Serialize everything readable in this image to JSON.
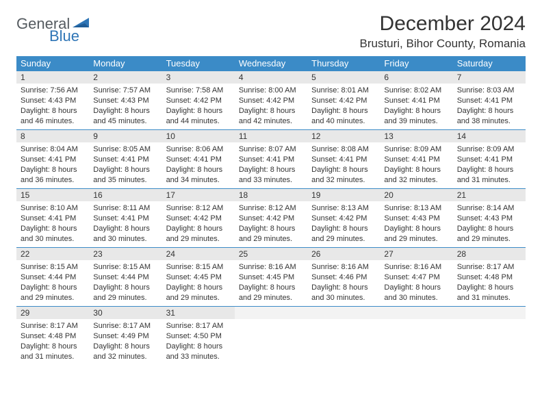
{
  "logo": {
    "text1": "General",
    "text2": "Blue",
    "color1": "#555b60",
    "color2": "#2e75b6"
  },
  "title": "December 2024",
  "location": "Brusturi, Bihor County, Romania",
  "header_bg": "#3b8bc7",
  "daynum_bg": "#e8e8e8",
  "border_color": "#3b8bc7",
  "weekdays": [
    "Sunday",
    "Monday",
    "Tuesday",
    "Wednesday",
    "Thursday",
    "Friday",
    "Saturday"
  ],
  "start_offset": 0,
  "days": [
    {
      "n": 1,
      "sr": "7:56 AM",
      "ss": "4:43 PM",
      "dl": "8 hours and 46 minutes."
    },
    {
      "n": 2,
      "sr": "7:57 AM",
      "ss": "4:43 PM",
      "dl": "8 hours and 45 minutes."
    },
    {
      "n": 3,
      "sr": "7:58 AM",
      "ss": "4:42 PM",
      "dl": "8 hours and 44 minutes."
    },
    {
      "n": 4,
      "sr": "8:00 AM",
      "ss": "4:42 PM",
      "dl": "8 hours and 42 minutes."
    },
    {
      "n": 5,
      "sr": "8:01 AM",
      "ss": "4:42 PM",
      "dl": "8 hours and 40 minutes."
    },
    {
      "n": 6,
      "sr": "8:02 AM",
      "ss": "4:41 PM",
      "dl": "8 hours and 39 minutes."
    },
    {
      "n": 7,
      "sr": "8:03 AM",
      "ss": "4:41 PM",
      "dl": "8 hours and 38 minutes."
    },
    {
      "n": 8,
      "sr": "8:04 AM",
      "ss": "4:41 PM",
      "dl": "8 hours and 36 minutes."
    },
    {
      "n": 9,
      "sr": "8:05 AM",
      "ss": "4:41 PM",
      "dl": "8 hours and 35 minutes."
    },
    {
      "n": 10,
      "sr": "8:06 AM",
      "ss": "4:41 PM",
      "dl": "8 hours and 34 minutes."
    },
    {
      "n": 11,
      "sr": "8:07 AM",
      "ss": "4:41 PM",
      "dl": "8 hours and 33 minutes."
    },
    {
      "n": 12,
      "sr": "8:08 AM",
      "ss": "4:41 PM",
      "dl": "8 hours and 32 minutes."
    },
    {
      "n": 13,
      "sr": "8:09 AM",
      "ss": "4:41 PM",
      "dl": "8 hours and 32 minutes."
    },
    {
      "n": 14,
      "sr": "8:09 AM",
      "ss": "4:41 PM",
      "dl": "8 hours and 31 minutes."
    },
    {
      "n": 15,
      "sr": "8:10 AM",
      "ss": "4:41 PM",
      "dl": "8 hours and 30 minutes."
    },
    {
      "n": 16,
      "sr": "8:11 AM",
      "ss": "4:41 PM",
      "dl": "8 hours and 30 minutes."
    },
    {
      "n": 17,
      "sr": "8:12 AM",
      "ss": "4:42 PM",
      "dl": "8 hours and 29 minutes."
    },
    {
      "n": 18,
      "sr": "8:12 AM",
      "ss": "4:42 PM",
      "dl": "8 hours and 29 minutes."
    },
    {
      "n": 19,
      "sr": "8:13 AM",
      "ss": "4:42 PM",
      "dl": "8 hours and 29 minutes."
    },
    {
      "n": 20,
      "sr": "8:13 AM",
      "ss": "4:43 PM",
      "dl": "8 hours and 29 minutes."
    },
    {
      "n": 21,
      "sr": "8:14 AM",
      "ss": "4:43 PM",
      "dl": "8 hours and 29 minutes."
    },
    {
      "n": 22,
      "sr": "8:15 AM",
      "ss": "4:44 PM",
      "dl": "8 hours and 29 minutes."
    },
    {
      "n": 23,
      "sr": "8:15 AM",
      "ss": "4:44 PM",
      "dl": "8 hours and 29 minutes."
    },
    {
      "n": 24,
      "sr": "8:15 AM",
      "ss": "4:45 PM",
      "dl": "8 hours and 29 minutes."
    },
    {
      "n": 25,
      "sr": "8:16 AM",
      "ss": "4:45 PM",
      "dl": "8 hours and 29 minutes."
    },
    {
      "n": 26,
      "sr": "8:16 AM",
      "ss": "4:46 PM",
      "dl": "8 hours and 30 minutes."
    },
    {
      "n": 27,
      "sr": "8:16 AM",
      "ss": "4:47 PM",
      "dl": "8 hours and 30 minutes."
    },
    {
      "n": 28,
      "sr": "8:17 AM",
      "ss": "4:48 PM",
      "dl": "8 hours and 31 minutes."
    },
    {
      "n": 29,
      "sr": "8:17 AM",
      "ss": "4:48 PM",
      "dl": "8 hours and 31 minutes."
    },
    {
      "n": 30,
      "sr": "8:17 AM",
      "ss": "4:49 PM",
      "dl": "8 hours and 32 minutes."
    },
    {
      "n": 31,
      "sr": "8:17 AM",
      "ss": "4:50 PM",
      "dl": "8 hours and 33 minutes."
    }
  ],
  "labels": {
    "sunrise": "Sunrise:",
    "sunset": "Sunset:",
    "daylight": "Daylight:"
  }
}
